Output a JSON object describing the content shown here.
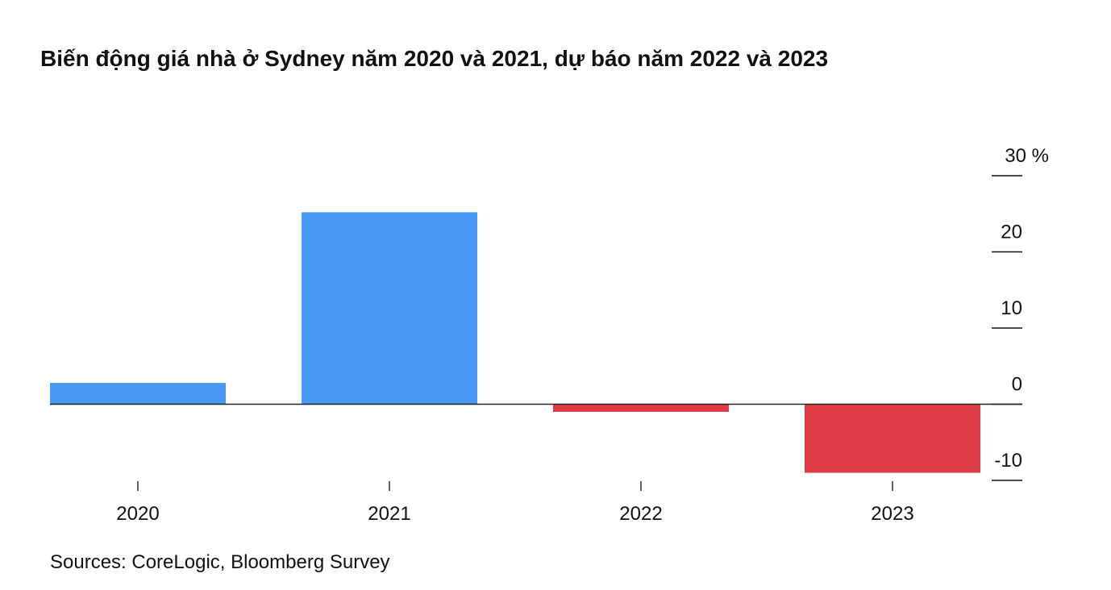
{
  "chart_data": {
    "type": "bar",
    "title": "Biến động giá nhà ở Sydney năm 2020 và 2021, dự báo năm 2022 và 2023",
    "categories": [
      "2020",
      "2021",
      "2022",
      "2023"
    ],
    "values": [
      2.8,
      25.2,
      -1,
      -9
    ],
    "colors": [
      "#4a9af5",
      "#4a9af5",
      "#dc3a45",
      "#dc3a45"
    ],
    "ylim": [
      -10,
      30
    ],
    "yticks": [
      -10,
      0,
      10,
      20,
      {
        "value": 30,
        "label": "30 %"
      }
    ],
    "source": "Sources: CoreLogic, Bloomberg Survey"
  }
}
